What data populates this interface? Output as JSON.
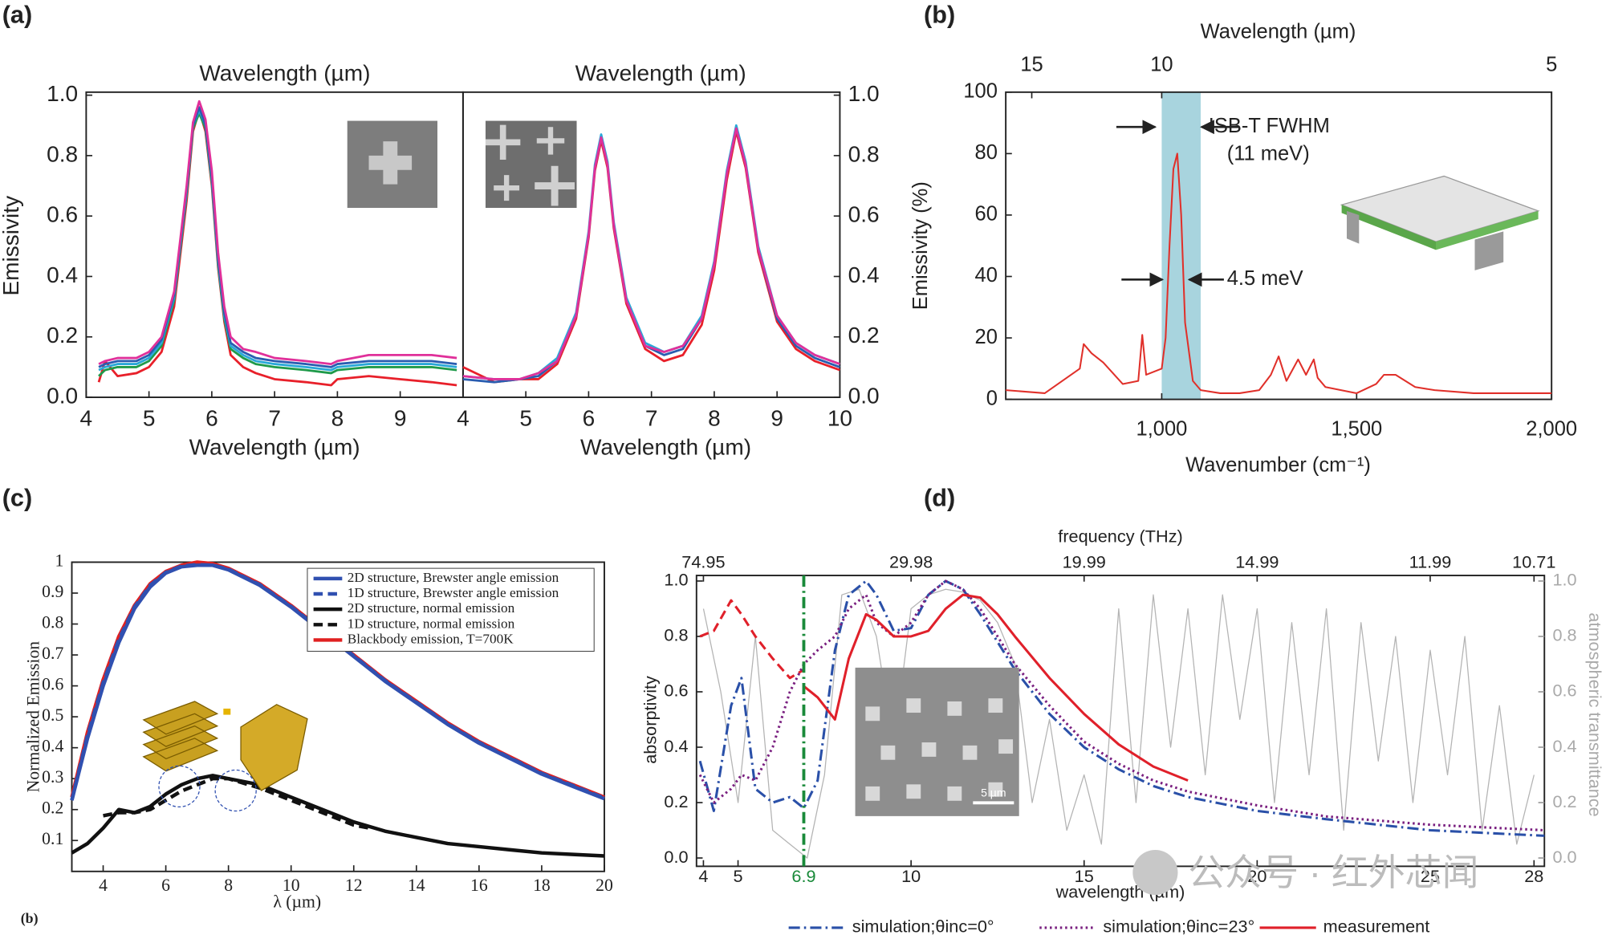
{
  "chart_data": [
    {
      "type": "line",
      "panel_label": "(a)",
      "top_label": "Wavelength (µm)",
      "x_label": "Wavelength (µm)",
      "y_label": "Emissivity",
      "xlim": [
        4,
        10
      ],
      "ylim": [
        0,
        1.01
      ],
      "xticks": [
        4,
        5,
        6,
        7,
        8,
        9
      ],
      "yticks": [
        {
          "value": 0,
          "label": "0.0"
        },
        0.2,
        0.4,
        0.6,
        0.8,
        {
          "value": 1,
          "label": "1.0"
        }
      ],
      "x": [
        4.2,
        4.3,
        4.5,
        4.8,
        5.0,
        5.2,
        5.4,
        5.6,
        5.7,
        5.8,
        5.9,
        6.0,
        6.1,
        6.2,
        6.3,
        6.5,
        6.7,
        7.0,
        7.5,
        7.9,
        8.0,
        8.5,
        9.0,
        9.5,
        9.9
      ],
      "series": [
        {
          "color": "#e8202a",
          "values": [
            0.05,
            0.12,
            0.07,
            0.08,
            0.1,
            0.15,
            0.3,
            0.65,
            0.88,
            0.95,
            0.88,
            0.7,
            0.43,
            0.25,
            0.14,
            0.1,
            0.08,
            0.06,
            0.05,
            0.04,
            0.06,
            0.07,
            0.06,
            0.05,
            0.04
          ]
        },
        {
          "color": "#1f9a4a",
          "values": [
            0.07,
            0.09,
            0.1,
            0.1,
            0.12,
            0.17,
            0.32,
            0.67,
            0.89,
            0.94,
            0.89,
            0.71,
            0.44,
            0.26,
            0.16,
            0.13,
            0.11,
            0.1,
            0.09,
            0.08,
            0.09,
            0.1,
            0.1,
            0.1,
            0.09
          ]
        },
        {
          "color": "#29a8d8",
          "values": [
            0.09,
            0.1,
            0.11,
            0.11,
            0.13,
            0.18,
            0.33,
            0.68,
            0.9,
            0.95,
            0.9,
            0.72,
            0.45,
            0.27,
            0.17,
            0.14,
            0.12,
            0.11,
            0.1,
            0.09,
            0.1,
            0.11,
            0.11,
            0.11,
            0.1
          ]
        },
        {
          "color": "#2a5db0",
          "values": [
            0.1,
            0.11,
            0.12,
            0.12,
            0.14,
            0.19,
            0.34,
            0.69,
            0.9,
            0.96,
            0.9,
            0.73,
            0.46,
            0.28,
            0.18,
            0.15,
            0.13,
            0.12,
            0.11,
            0.1,
            0.11,
            0.12,
            0.12,
            0.12,
            0.11
          ]
        },
        {
          "color": "#e0309a",
          "values": [
            0.11,
            0.12,
            0.13,
            0.13,
            0.15,
            0.2,
            0.35,
            0.7,
            0.91,
            0.98,
            0.92,
            0.75,
            0.48,
            0.3,
            0.2,
            0.16,
            0.15,
            0.13,
            0.12,
            0.11,
            0.12,
            0.14,
            0.14,
            0.14,
            0.13
          ]
        }
      ]
    },
    {
      "type": "line",
      "top_label": "Wavelength (µm)",
      "x_label": "Wavelength (µm)",
      "xlim": [
        4,
        10
      ],
      "ylim": [
        0,
        1.01
      ],
      "xticks": [
        4,
        5,
        6,
        7,
        8,
        9,
        10
      ],
      "yticks": [
        {
          "value": 0,
          "label": "0.0"
        },
        0.2,
        0.4,
        0.6,
        0.8,
        {
          "value": 1,
          "label": "1.0"
        }
      ],
      "x": [
        4.0,
        4.5,
        4.9,
        5.2,
        5.5,
        5.8,
        6.0,
        6.1,
        6.2,
        6.3,
        6.4,
        6.6,
        6.9,
        7.2,
        7.5,
        7.8,
        8.0,
        8.2,
        8.35,
        8.5,
        8.7,
        9.0,
        9.3,
        9.6,
        10.0
      ],
      "series": [
        {
          "color": "#e8202a",
          "values": [
            0.1,
            0.05,
            0.06,
            0.06,
            0.11,
            0.26,
            0.53,
            0.75,
            0.85,
            0.76,
            0.56,
            0.31,
            0.16,
            0.12,
            0.14,
            0.24,
            0.42,
            0.72,
            0.88,
            0.76,
            0.48,
            0.25,
            0.16,
            0.12,
            0.09
          ]
        },
        {
          "color": "#2a5db0",
          "values": [
            0.06,
            0.05,
            0.06,
            0.07,
            0.12,
            0.27,
            0.54,
            0.76,
            0.86,
            0.77,
            0.57,
            0.32,
            0.17,
            0.14,
            0.16,
            0.26,
            0.44,
            0.74,
            0.89,
            0.77,
            0.49,
            0.26,
            0.17,
            0.13,
            0.1
          ]
        },
        {
          "color": "#29a8d8",
          "values": [
            0.07,
            0.06,
            0.06,
            0.08,
            0.13,
            0.28,
            0.55,
            0.77,
            0.87,
            0.78,
            0.58,
            0.33,
            0.18,
            0.15,
            0.17,
            0.27,
            0.45,
            0.75,
            0.9,
            0.78,
            0.5,
            0.27,
            0.18,
            0.14,
            0.11
          ]
        },
        {
          "color": "#e0309a",
          "values": [
            0.07,
            0.06,
            0.06,
            0.08,
            0.12,
            0.27,
            0.54,
            0.76,
            0.86,
            0.77,
            0.57,
            0.32,
            0.17,
            0.15,
            0.17,
            0.26,
            0.44,
            0.74,
            0.89,
            0.77,
            0.49,
            0.27,
            0.18,
            0.14,
            0.11
          ]
        }
      ]
    },
    {
      "type": "line",
      "panel_label": "(b)",
      "top_label": "Wavelength (µm)",
      "x_label": "Wavenumber (cm⁻¹)",
      "y_label": "Emissivity (%)",
      "xlim": [
        600,
        2000
      ],
      "ylim": [
        0,
        100
      ],
      "xticks": [
        {
          "value": 1000,
          "label": "1,000"
        },
        {
          "value": 1500,
          "label": "1,500"
        },
        {
          "value": 2000,
          "label": "2,000"
        }
      ],
      "x2ticks": [
        {
          "value": 666.7,
          "label": "15"
        },
        {
          "value": 1000,
          "label": "10"
        },
        {
          "value": 2000,
          "label": "5"
        }
      ],
      "yticks": [
        0,
        20,
        40,
        60,
        80,
        100
      ],
      "band": [
        1000,
        1100
      ],
      "band_color": "#a8d4de",
      "annotations": [
        "ISB-T FWHM",
        "(11 meV)",
        "4.5 meV"
      ],
      "x": [
        600,
        700,
        790,
        800,
        820,
        850,
        900,
        940,
        950,
        960,
        1000,
        1010,
        1020,
        1030,
        1040,
        1050,
        1060,
        1080,
        1100,
        1150,
        1200,
        1250,
        1280,
        1300,
        1320,
        1350,
        1370,
        1390,
        1400,
        1420,
        1500,
        1550,
        1570,
        1600,
        1650,
        1700,
        1800,
        1900,
        2000
      ],
      "series": [
        {
          "color": "#e0302a",
          "values": [
            3,
            2,
            10,
            18,
            15,
            12,
            5,
            6,
            21,
            8,
            10,
            20,
            50,
            75,
            80,
            60,
            25,
            6,
            3,
            2,
            2,
            3,
            8,
            14,
            6,
            13,
            8,
            13,
            7,
            4,
            2,
            5,
            8,
            8,
            4,
            3,
            2,
            2,
            2
          ]
        }
      ]
    },
    {
      "type": "line",
      "panel_label": "(c)",
      "sub_label": "(b)",
      "x_label": "λ (µm)",
      "y_label": "Normalized Emission",
      "xlim": [
        3,
        20
      ],
      "ylim": [
        0,
        1.0
      ],
      "xticks": [
        4,
        6,
        8,
        10,
        12,
        14,
        16,
        18,
        20
      ],
      "yticks": [
        0.1,
        0.2,
        0.3,
        0.4,
        0.5,
        0.6,
        0.7,
        0.8,
        0.9,
        1
      ],
      "x": [
        3,
        3.5,
        4,
        4.5,
        5,
        5.5,
        6,
        6.5,
        7,
        7.5,
        8,
        9,
        10,
        11,
        12,
        12.5,
        13,
        14,
        15,
        16,
        17,
        18,
        19,
        20
      ],
      "series": [
        {
          "name": "Blackbody emission, T=700K",
          "color": "#e02020",
          "legend_order": 4,
          "values": [
            0.24,
            0.45,
            0.62,
            0.76,
            0.86,
            0.93,
            0.97,
            0.99,
            1.0,
            0.995,
            0.98,
            0.93,
            0.86,
            0.78,
            0.7,
            0.66,
            0.62,
            0.55,
            0.48,
            0.42,
            0.37,
            0.32,
            0.28,
            0.24
          ]
        },
        {
          "name": "2D structure, Brewster angle emission",
          "color": "#3050b0",
          "legend_order": 0,
          "values": [
            0.23,
            0.43,
            0.6,
            0.74,
            0.85,
            0.92,
            0.965,
            0.985,
            0.99,
            0.99,
            0.975,
            0.925,
            0.855,
            0.775,
            0.695,
            0.655,
            0.615,
            0.545,
            0.475,
            0.415,
            0.365,
            0.315,
            0.275,
            0.235
          ]
        },
        {
          "name": "1D structure, Brewster angle emission",
          "color": "#3050b0",
          "dash": "dashed",
          "legend_order": 1,
          "values": [
            0.23,
            0.44,
            0.61,
            0.75,
            0.855,
            0.925,
            0.967,
            0.987,
            0.992,
            0.99,
            0.977,
            0.927,
            0.857,
            0.777,
            0.697,
            0.657,
            0.617,
            0.547,
            0.477,
            0.417,
            0.367,
            0.317,
            0.277,
            0.237
          ]
        },
        {
          "name": "2D structure, normal emission",
          "color": "#111111",
          "legend_order": 2,
          "values": [
            0.06,
            0.09,
            0.14,
            0.2,
            0.19,
            0.21,
            0.25,
            0.28,
            0.3,
            0.31,
            0.3,
            0.28,
            0.24,
            0.2,
            0.16,
            0.145,
            0.13,
            0.11,
            0.09,
            0.08,
            0.07,
            0.06,
            0.055,
            0.05
          ]
        },
        {
          "name": "1D structure, normal emission",
          "color": "#111111",
          "dash": "dashed",
          "legend_order": 3,
          "values": [
            null,
            null,
            0.18,
            0.19,
            0.19,
            0.2,
            0.23,
            0.26,
            0.28,
            0.3,
            0.3,
            0.27,
            0.23,
            0.19,
            0.15,
            0.14,
            null,
            null,
            null,
            null,
            null,
            null,
            null,
            null
          ]
        }
      ]
    },
    {
      "type": "line",
      "panel_label": "(d)",
      "top_label": "frequency (THz)",
      "x_label": "wavelength (µm)",
      "y_label": "absorptivity",
      "y2_label": "atmospheric transmittance",
      "xlim": [
        3.8,
        28.3
      ],
      "ylim": [
        -0.03,
        1.02
      ],
      "y2lim": [
        -0.03,
        1.02
      ],
      "xticks": [
        4,
        5,
        6.9,
        10,
        15,
        20,
        25,
        28
      ],
      "x2ticks": [
        {
          "value": 4,
          "label": "74.95"
        },
        {
          "value": 10,
          "label": "29.98"
        },
        {
          "value": 15,
          "label": "19.99"
        },
        {
          "value": 20,
          "label": "14.99"
        },
        {
          "value": 25,
          "label": "11.99"
        },
        {
          "value": 28,
          "label": "10.71"
        }
      ],
      "yticks": [
        {
          "value": 0,
          "label": "0.0"
        },
        0.2,
        0.4,
        0.6,
        0.8,
        {
          "value": 1,
          "label": "1.0"
        }
      ],
      "y2ticks": [
        {
          "value": 0,
          "label": "0.0"
        },
        0.2,
        0.4,
        0.6,
        0.8,
        {
          "value": 1,
          "label": "1.0"
        }
      ],
      "highlight_x": 6.9,
      "highlight_color": "#1a8a3a",
      "inset_label": "5 µm",
      "watermark": "公众号 · 红外芯闻",
      "x": [
        3.9,
        4.3,
        4.8,
        5.1,
        5.5,
        6.0,
        6.5,
        6.9,
        7.3,
        7.8,
        8.2,
        8.7,
        9.0,
        9.5,
        10,
        10.5,
        11,
        11.5,
        12,
        12.5,
        13,
        14,
        15,
        16,
        17,
        18,
        20,
        22,
        25,
        28.3
      ],
      "series": [
        {
          "axis": "y2",
          "color": "#b4b4b4",
          "x": [
            4,
            4.5,
            5,
            5.5,
            6,
            6.5,
            7,
            7.5,
            8,
            8.5,
            9,
            9.5,
            10,
            10.5,
            11,
            11.5,
            12,
            12.5,
            13,
            13.5,
            14,
            14.5,
            15,
            15.5,
            16,
            16.5,
            17,
            17.5,
            18,
            18.5,
            19,
            19.5,
            20,
            20.5,
            21,
            21.5,
            22,
            22.5,
            23,
            23.5,
            24,
            24.5,
            25,
            25.5,
            26,
            26.5,
            27,
            27.5,
            28
          ],
          "values": [
            0.9,
            0.6,
            0.2,
            0.8,
            0.1,
            0.05,
            0.0,
            0.3,
            0.95,
            0.97,
            0.8,
            0.4,
            0.9,
            0.95,
            0.97,
            0.96,
            0.93,
            0.85,
            0.7,
            0.2,
            0.5,
            0.1,
            0.3,
            0.05,
            0.9,
            0.2,
            0.95,
            0.4,
            0.9,
            0.3,
            0.95,
            0.5,
            0.9,
            0.2,
            0.85,
            0.3,
            0.9,
            0.1,
            0.85,
            0.35,
            0.8,
            0.2,
            0.75,
            0.3,
            0.8,
            0.1,
            0.55,
            0.05,
            0.3
          ]
        },
        {
          "color": "#e0202a",
          "dash": "dashed",
          "values": [
            0.8,
            0.82,
            0.93,
            0.88,
            0.8,
            0.72,
            0.65,
            0.68,
            null,
            null,
            null,
            null,
            null,
            null,
            null,
            null,
            null,
            null,
            null,
            null,
            null,
            null,
            null,
            null,
            null,
            null,
            null,
            null,
            null,
            null
          ]
        },
        {
          "name": "simulation;θinc=0°",
          "color": "#2a50a8",
          "dash": "dashdot",
          "values": [
            0.35,
            0.17,
            0.55,
            0.65,
            0.25,
            0.2,
            0.22,
            0.18,
            0.28,
            0.75,
            0.95,
            1.0,
            0.95,
            0.82,
            0.83,
            0.95,
            1.0,
            0.97,
            0.88,
            0.78,
            0.68,
            0.52,
            0.4,
            0.32,
            0.26,
            0.22,
            0.17,
            0.14,
            0.1,
            0.08
          ]
        },
        {
          "name": "simulation;θinc=23°",
          "color": "#7a2080",
          "dash": "dotted",
          "values": [
            0.3,
            0.2,
            0.25,
            0.3,
            0.28,
            0.4,
            0.6,
            0.7,
            0.75,
            0.8,
            0.9,
            0.95,
            0.85,
            0.8,
            0.85,
            0.95,
            1.0,
            0.97,
            0.9,
            0.8,
            0.7,
            0.55,
            0.42,
            0.34,
            0.28,
            0.24,
            0.19,
            0.15,
            0.12,
            0.1
          ]
        },
        {
          "name": "measurement",
          "color": "#e0202a",
          "values": [
            null,
            null,
            null,
            null,
            null,
            null,
            null,
            0.62,
            0.58,
            0.5,
            0.72,
            0.88,
            0.86,
            0.8,
            0.8,
            0.82,
            0.9,
            0.95,
            0.94,
            0.88,
            0.8,
            0.65,
            0.52,
            0.41,
            0.33,
            0.28,
            null,
            null,
            null,
            null
          ]
        }
      ]
    }
  ]
}
